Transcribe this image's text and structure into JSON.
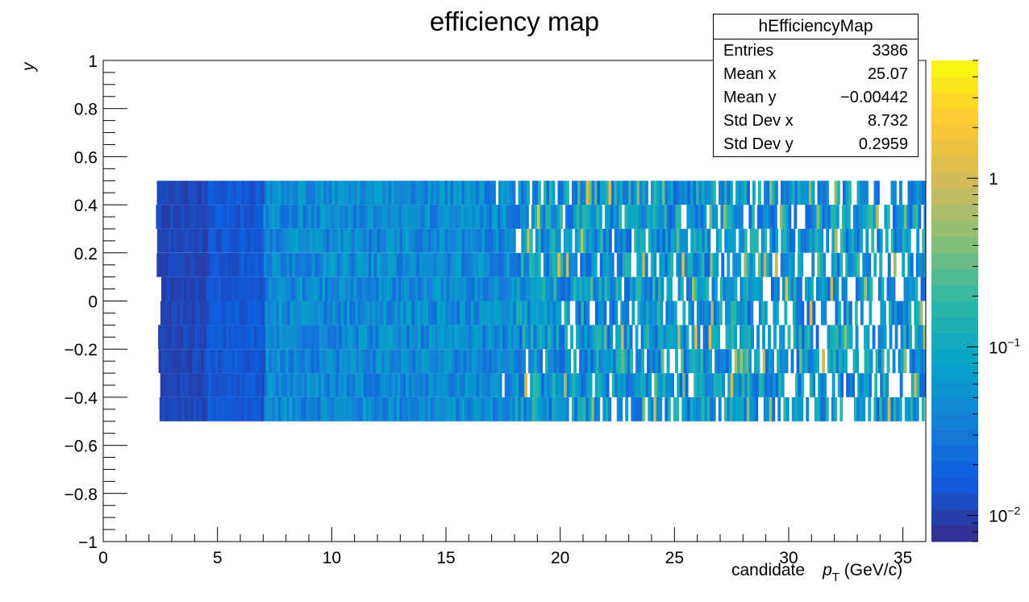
{
  "chart_data": {
    "type": "heatmap",
    "title": "efficiency map",
    "xlabel": {
      "prefix": "candidate",
      "symbol": "p",
      "subscript": "T",
      "unit": "(GeV/c)"
    },
    "ylabel": "y",
    "xlim": [
      0,
      36
    ],
    "ylim": [
      -1,
      1
    ],
    "xticks": [
      0,
      5,
      10,
      15,
      20,
      25,
      30,
      35
    ],
    "yticks": [
      -1,
      -0.8,
      -0.6,
      -0.4,
      -0.2,
      0,
      0.2,
      0.4,
      0.6,
      0.8,
      1
    ],
    "ytick_labels": [
      "−1",
      "−0.8",
      "−0.6",
      "−0.4",
      "−0.2",
      "0",
      "0.2",
      "0.4",
      "0.6",
      "0.8",
      "1"
    ],
    "filled_region": {
      "x_from": 2.3,
      "x_to": 36,
      "y_from": -0.5,
      "y_to": 0.5,
      "y_bins": 10
    },
    "zscale": "log",
    "zlim": [
      0.007,
      5
    ],
    "colorbar_ticks": [
      {
        "value": 0.01,
        "base": "10",
        "exp": "−2"
      },
      {
        "value": 0.1,
        "base": "10",
        "exp": "−1"
      },
      {
        "value": 1,
        "base": "1",
        "exp": ""
      }
    ],
    "palette": "kBird",
    "palette_colors": [
      "#352a87",
      "#0f5cdd",
      "#1481d6",
      "#06a4ca",
      "#2eb7a4",
      "#87bf77",
      "#d1bb59",
      "#fec832",
      "#f9fb0e"
    ]
  },
  "stats": {
    "name": "hEfficiencyMap",
    "rows": [
      {
        "key": "Entries",
        "value": "3386"
      },
      {
        "key": "Mean x",
        "value": "25.07"
      },
      {
        "key": "Mean y",
        "value": "−0.00442"
      },
      {
        "key": "Std Dev x",
        "value": "8.732"
      },
      {
        "key": "Std Dev y",
        "value": "0.2959"
      }
    ]
  }
}
